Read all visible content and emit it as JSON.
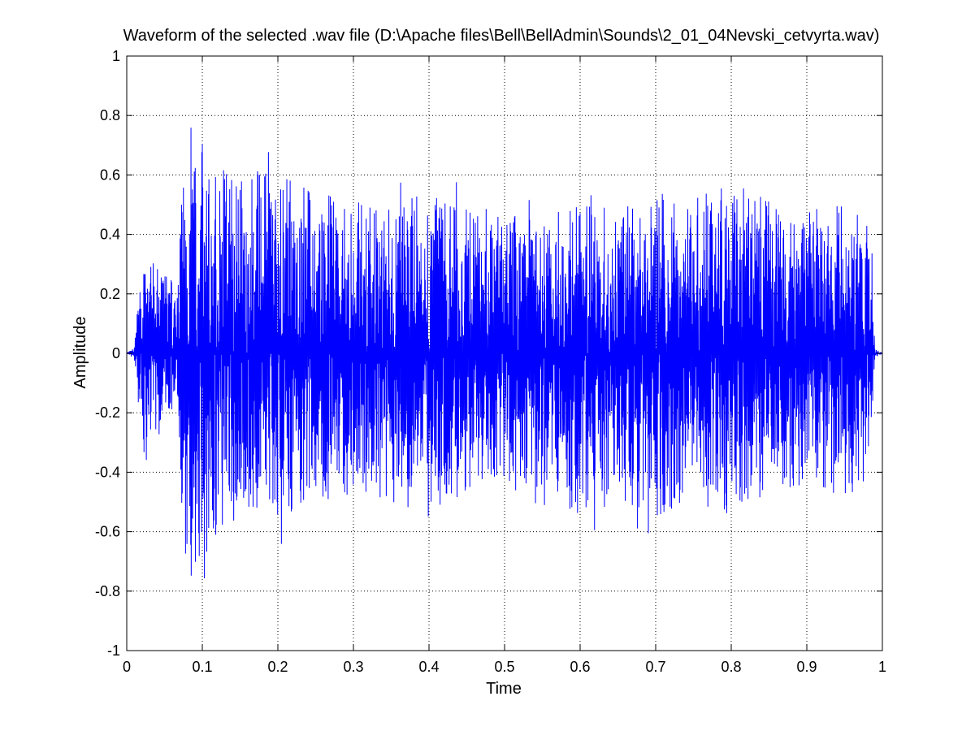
{
  "window": {
    "background": "#ffffff"
  },
  "chart_data": {
    "type": "line",
    "title": "Waveform of the selected .wav file (D:\\Apache files\\Bell\\BellAdmin\\Sounds\\2_01_04Nevski_cetvyrta.wav)",
    "xlabel": "Time",
    "ylabel": "Amplitude",
    "xlim": [
      0,
      1
    ],
    "ylim": [
      -1,
      1
    ],
    "grid": true,
    "grid_style": "dotted",
    "line_color": "#0000ff",
    "x_ticks": [
      0,
      0.1,
      0.2,
      0.3,
      0.4,
      0.5,
      0.6,
      0.7,
      0.8,
      0.9,
      1
    ],
    "x_tick_labels": [
      "0",
      "0.1",
      "0.2",
      "0.3",
      "0.4",
      "0.5",
      "0.6",
      "0.7",
      "0.8",
      "0.9",
      "1"
    ],
    "y_ticks": [
      1,
      0.8,
      0.6,
      0.4,
      0.2,
      0,
      -0.2,
      -0.4,
      -0.6,
      -0.8,
      -1
    ],
    "y_tick_labels": [
      "1",
      "0.8",
      "0.6",
      "0.4",
      "0.2",
      "0",
      "-0.2",
      "-0.4",
      "-0.6",
      "-0.8",
      "-1"
    ],
    "envelope": {
      "x": [
        0,
        0.01,
        0.02,
        0.04,
        0.06,
        0.068,
        0.072,
        0.08,
        0.1,
        0.12,
        0.15,
        0.2,
        0.25,
        0.3,
        0.35,
        0.4,
        0.45,
        0.5,
        0.55,
        0.6,
        0.65,
        0.7,
        0.75,
        0.8,
        0.85,
        0.9,
        0.95,
        0.985,
        0.99,
        1
      ],
      "upper": [
        0.0,
        0.02,
        0.32,
        0.3,
        0.26,
        0.22,
        0.6,
        0.82,
        0.72,
        0.65,
        0.62,
        0.62,
        0.55,
        0.52,
        0.5,
        0.55,
        0.5,
        0.48,
        0.45,
        0.55,
        0.5,
        0.55,
        0.52,
        0.58,
        0.52,
        0.48,
        0.5,
        0.45,
        0.02,
        0.0
      ],
      "lower": [
        0.0,
        -0.02,
        -0.35,
        -0.25,
        -0.2,
        -0.2,
        -0.62,
        -0.78,
        -0.68,
        -0.65,
        -0.55,
        -0.58,
        -0.5,
        -0.48,
        -0.5,
        -0.55,
        -0.48,
        -0.45,
        -0.45,
        -0.55,
        -0.5,
        -0.55,
        -0.52,
        -0.55,
        -0.5,
        -0.48,
        -0.48,
        -0.45,
        -0.02,
        0.0
      ]
    }
  }
}
